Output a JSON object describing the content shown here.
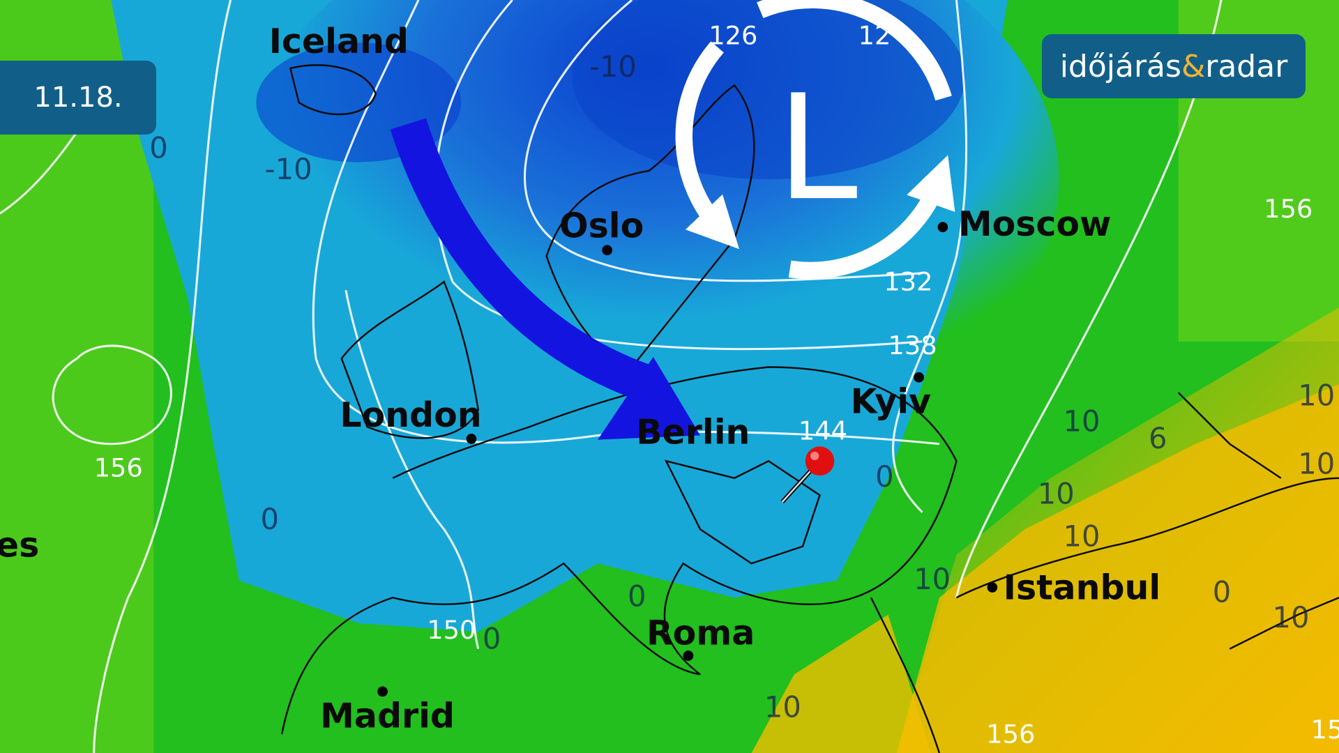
{
  "date_label": "11.18.",
  "logo": {
    "part1": "időjárás",
    "amp": "&",
    "part2": "radar"
  },
  "cities": [
    {
      "name": "Iceland"
    },
    {
      "name": "Oslo"
    },
    {
      "name": "Moscow"
    },
    {
      "name": "London"
    },
    {
      "name": "Berlin"
    },
    {
      "name": "Kyiv"
    },
    {
      "name": "Istanbul"
    },
    {
      "name": "Roma"
    },
    {
      "name": "Madrid"
    },
    {
      "name": "es"
    }
  ],
  "pressure_system": {
    "label": "L",
    "type": "low"
  },
  "isohypse_labels": [
    "126",
    "12",
    "132",
    "138",
    "144",
    "156",
    "156",
    "150",
    "156",
    "15"
  ],
  "temperature_labels": [
    "0",
    "-10",
    "-10",
    "0",
    "0",
    "0",
    "10",
    "10",
    "10",
    "10",
    "10",
    "10",
    "10",
    "0",
    "0",
    "10",
    "6"
  ],
  "colors": {
    "cold_deep": "#0a3fcf",
    "cold": "#1a7fd6",
    "cool": "#18a8d8",
    "mild": "#1fc21f",
    "warm": "#f2c20a",
    "arrow": "#1414e0",
    "badge": "#115f89",
    "pin": "#e01010"
  }
}
